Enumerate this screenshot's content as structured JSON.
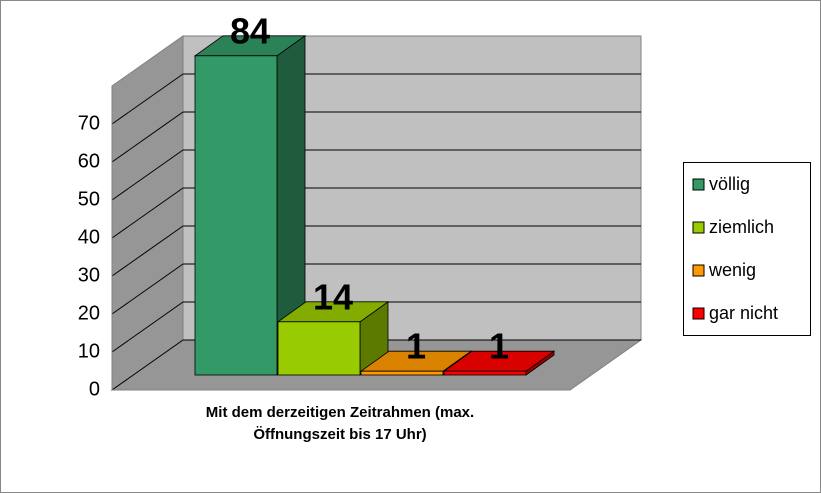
{
  "chart_data": {
    "type": "bar3d",
    "categories": [
      "Mit dem derzeitigen Zeitrahmen (max. Öffnungszeit bis 17 Uhr)"
    ],
    "series": [
      {
        "name": "völlig",
        "color": "#339966",
        "values": [
          84
        ]
      },
      {
        "name": "ziemlich",
        "color": "#99cc00",
        "values": [
          14
        ]
      },
      {
        "name": "wenig",
        "color": "#ff9900",
        "values": [
          1
        ]
      },
      {
        "name": "gar nicht",
        "color": "#ff0000",
        "values": [
          1
        ]
      }
    ],
    "ylim": [
      0,
      80
    ],
    "yticks": [
      0,
      10,
      20,
      30,
      40,
      50,
      60,
      70
    ],
    "grid": true,
    "legend": "right"
  }
}
